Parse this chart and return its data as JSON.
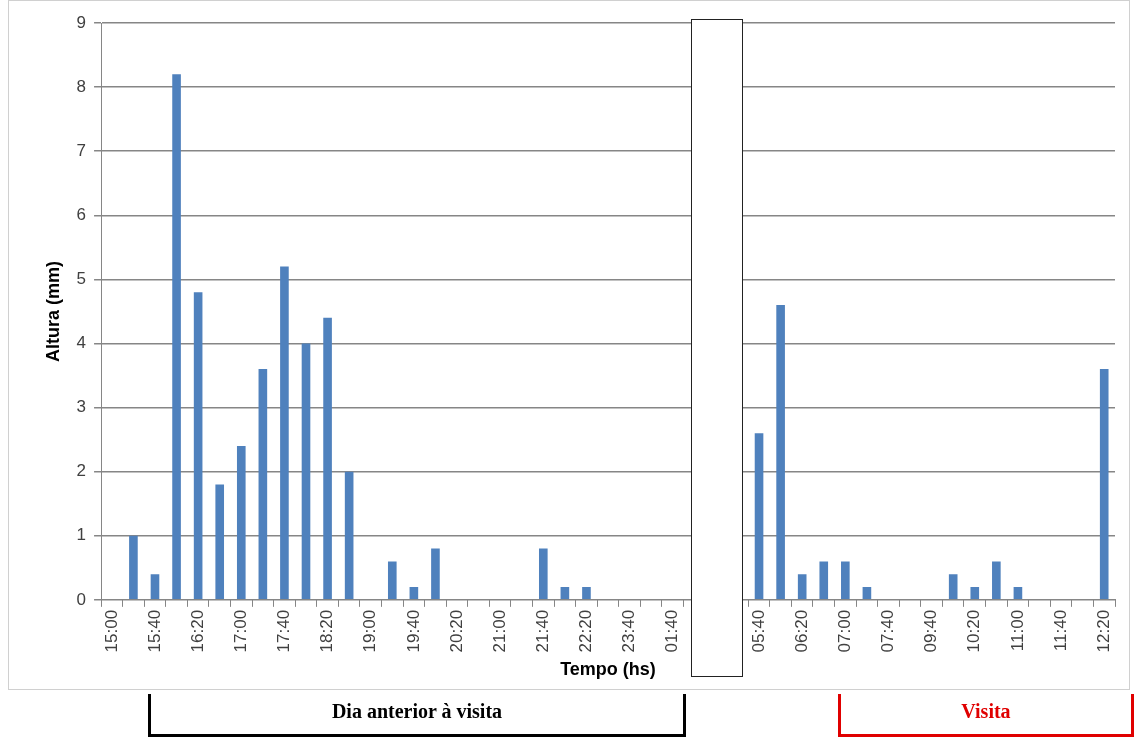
{
  "chart_data": {
    "type": "bar",
    "xlabel": "Tempo (hs)",
    "ylabel": "Altura (mm)",
    "categories": [
      "15:00",
      null,
      "15:40",
      null,
      "16:20",
      null,
      "17:00",
      null,
      "17:40",
      null,
      "18:20",
      null,
      "19:00",
      null,
      "19:40",
      null,
      "20:20",
      null,
      "21:00",
      null,
      "21:40",
      null,
      "22:20",
      null,
      "23:40",
      null,
      "01:40",
      null,
      null,
      null,
      "05:40",
      null,
      "06:20",
      null,
      "07:00",
      null,
      "07:40",
      null,
      "09:40",
      null,
      "10:20",
      null,
      "11:00",
      null,
      "11:40",
      null,
      "12:20"
    ],
    "values": [
      0,
      1.0,
      0.4,
      8.2,
      4.8,
      1.8,
      2.4,
      3.6,
      5.2,
      4.0,
      4.4,
      2.0,
      0,
      0.6,
      0.2,
      0.8,
      0,
      0,
      0,
      0,
      0.8,
      0.2,
      0.2,
      0,
      0,
      0,
      0,
      null,
      null,
      null,
      2.6,
      4.6,
      0.4,
      0.6,
      0.6,
      0.2,
      0,
      0,
      0,
      0.4,
      0.2,
      0.6,
      0.2,
      0,
      0,
      0,
      3.6
    ],
    "color": "#4f81bd",
    "ylim": [
      0,
      9
    ],
    "yticks": [
      0,
      1,
      2,
      3,
      4,
      5,
      6,
      7,
      8,
      9
    ],
    "grid": "y",
    "annotations": [
      "Dia anterior à visita",
      "Visita"
    ]
  }
}
